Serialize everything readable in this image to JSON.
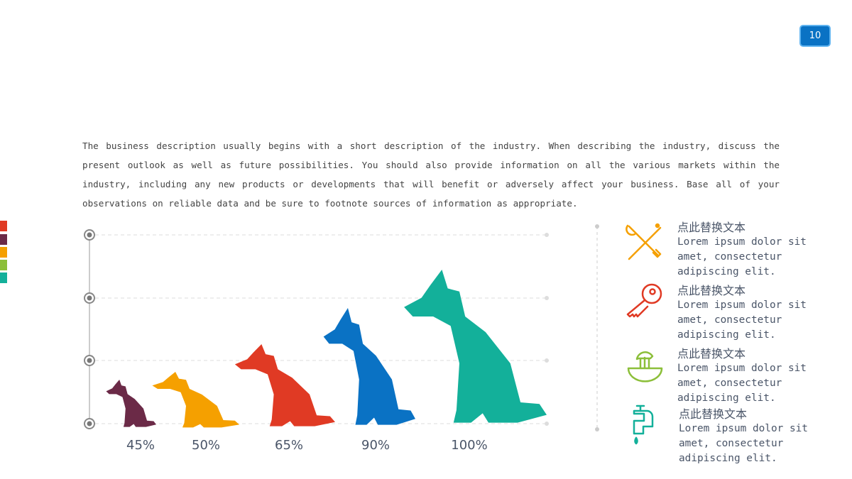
{
  "page_number": "10",
  "intro": "The business description usually begins with a short description of the industry. When describing the industry, discuss the present outlook as well as future possibilities. You should also provide information on all the various markets within the industry, including any new products or developments that will benefit or adversely affect your business. Base all of your observations on reliable data and be sure to footnote sources of information as appropriate.",
  "swatches": [
    "#e03a24",
    "#6b2a47",
    "#f5a000",
    "#8cbf3a",
    "#13b09a"
  ],
  "dogs": [
    {
      "label": "45%",
      "value": 45,
      "color": "#6b2a47"
    },
    {
      "label": "50%",
      "value": 50,
      "color": "#f5a000"
    },
    {
      "label": "65%",
      "value": 65,
      "color": "#e03a24"
    },
    {
      "label": "90%",
      "value": 90,
      "color": "#0a72c4"
    },
    {
      "label": "100%",
      "value": 100,
      "color": "#13b09a"
    }
  ],
  "items": [
    {
      "title": "点此替换文本",
      "text": "Lorem ipsum dolor sit amet, consectetur adipiscing elit.",
      "icon": "tools-icon",
      "color": "#f5a000"
    },
    {
      "title": "点此替换文本",
      "text": "Lorem ipsum dolor sit amet, consectetur adipiscing elit.",
      "icon": "key-icon",
      "color": "#e03a24"
    },
    {
      "title": "点此替换文本",
      "text": "Lorem ipsum dolor sit amet, consectetur adipiscing elit.",
      "icon": "juicer-icon",
      "color": "#8cbf3a"
    },
    {
      "title": "点此替换文本",
      "text": "Lorem ipsum dolor sit amet, consectetur adipiscing elit.",
      "icon": "faucet-icon",
      "color": "#13b09a"
    }
  ]
}
